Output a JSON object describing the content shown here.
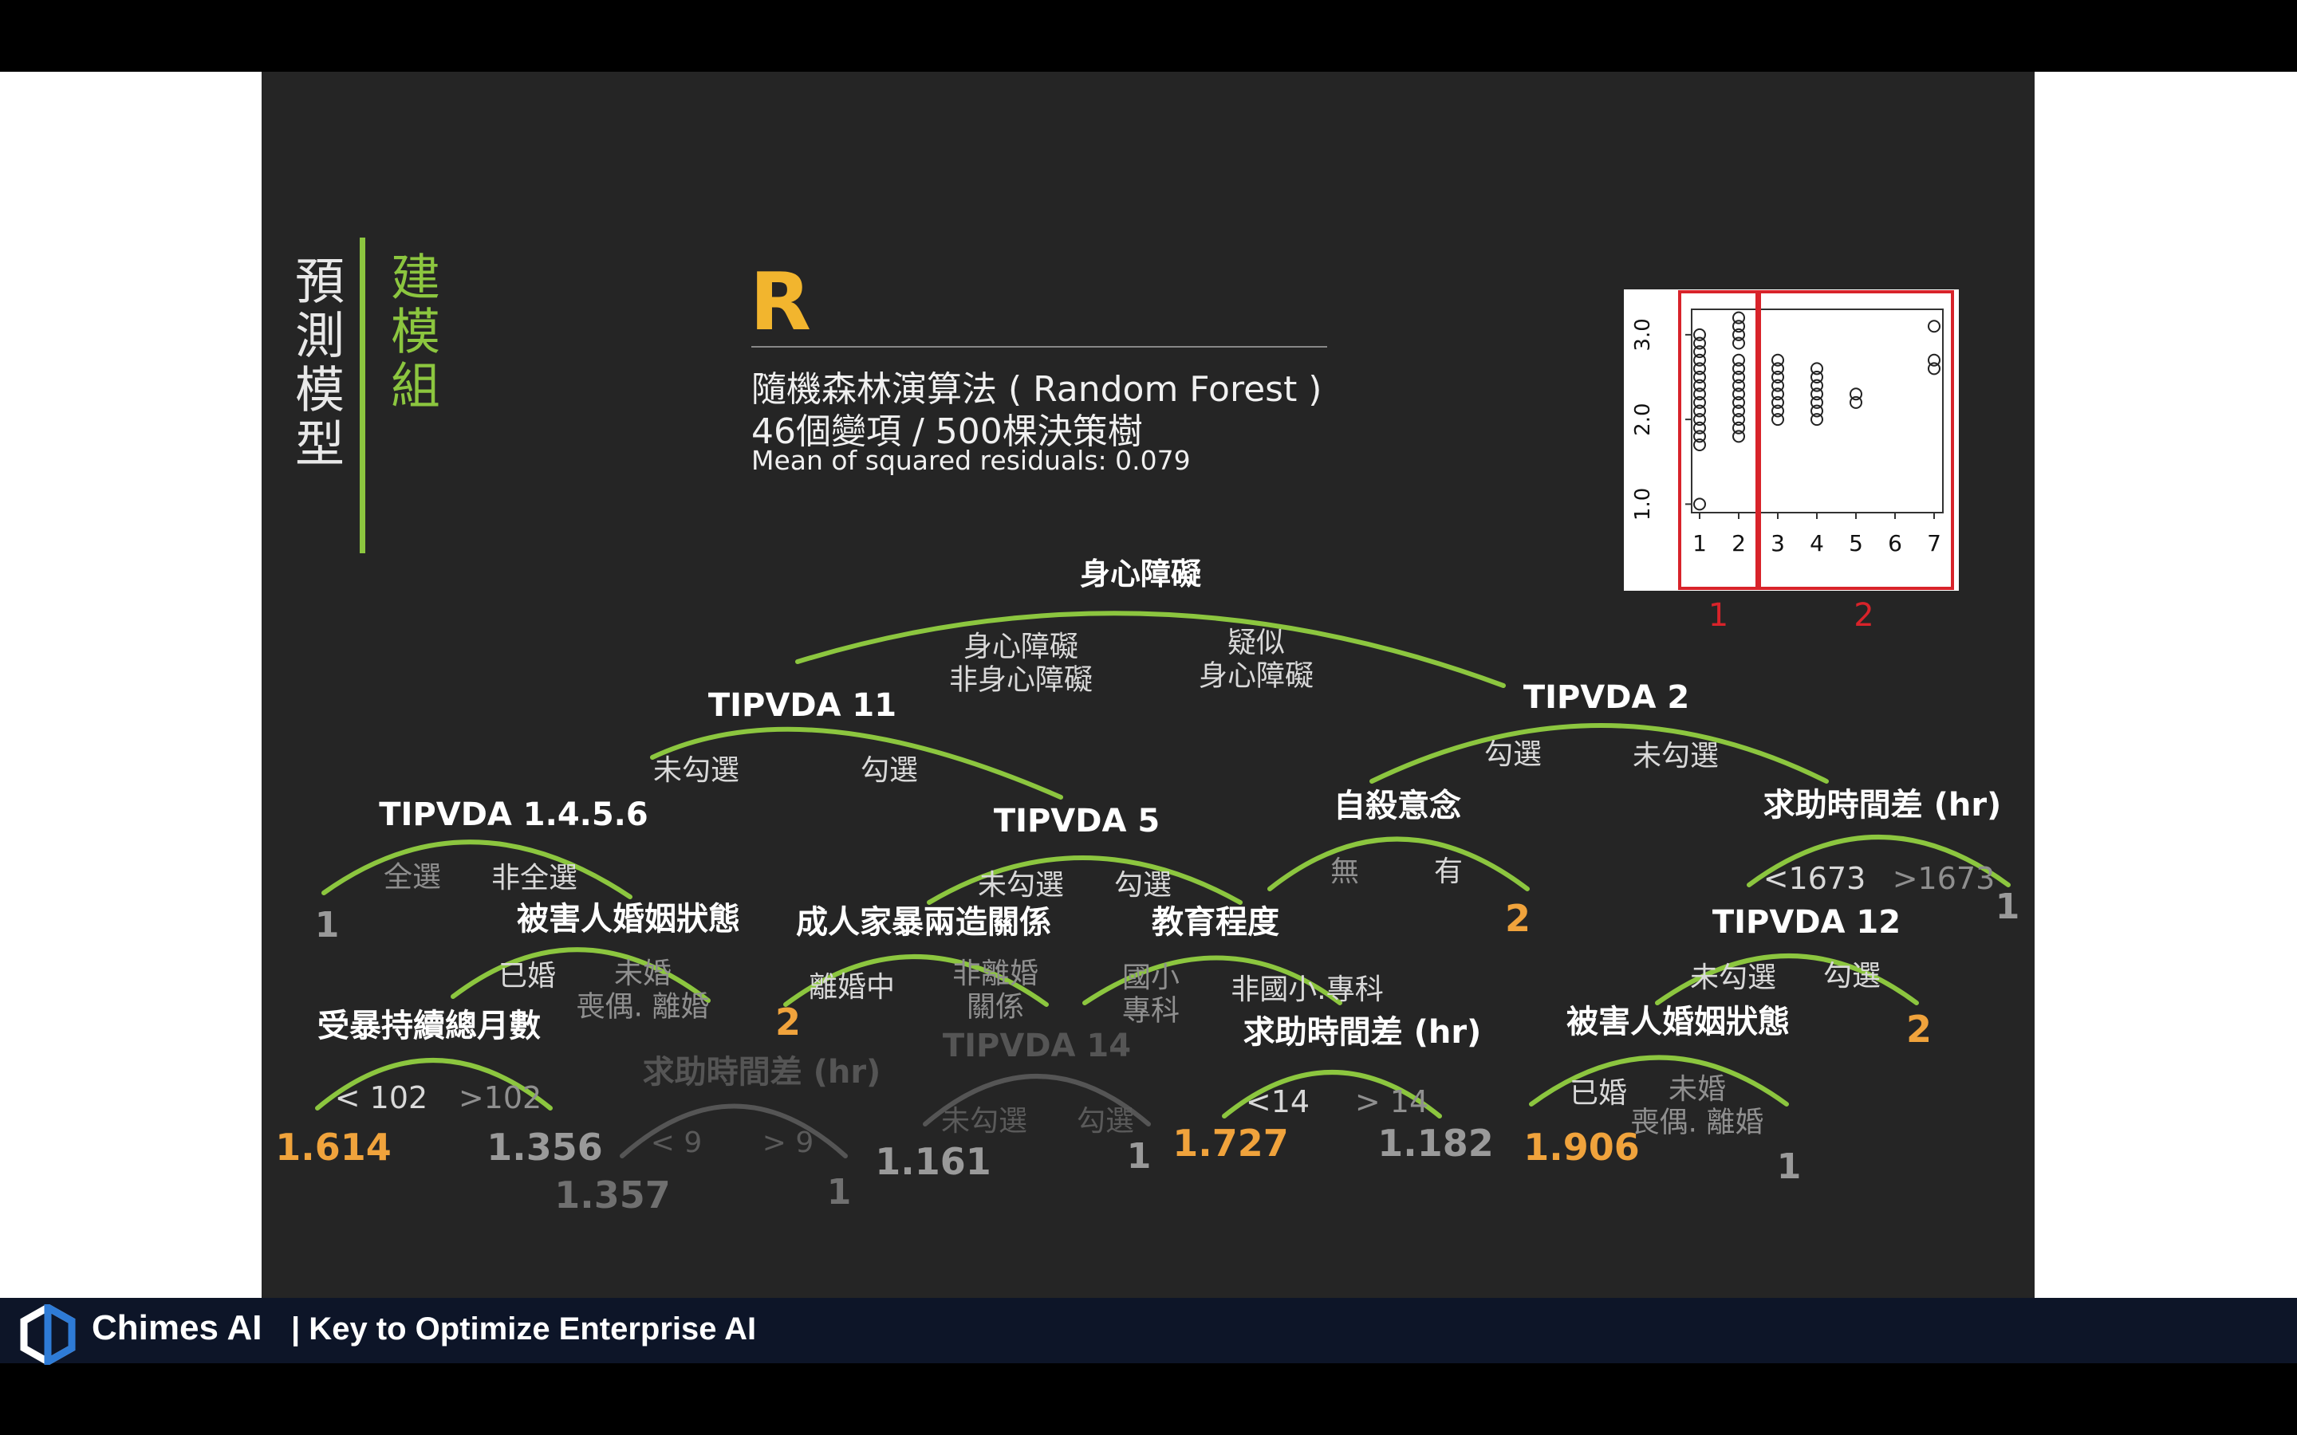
{
  "footer": {
    "brand": "Chimes AI",
    "tagline": "| Key to Optimize Enterprise AI",
    "colors": {
      "bar": "#0d1528"
    }
  },
  "sidebar": {
    "module_title": "建模組",
    "module_subtitle": "預測模型",
    "colors": {
      "accent": "#8cc63f"
    }
  },
  "header": {
    "letter": "R",
    "algorithm": "隨機森林演算法 ( Random Forest )",
    "config": "46個變項 / 500棵決策樹",
    "metric": "Mean of squared residuals: 0.079"
  },
  "inset_plot": {
    "y_ticks": [
      "1.0",
      "2.0",
      "3.0"
    ],
    "x_ticks": [
      "1",
      "2",
      "3",
      "4",
      "5",
      "6",
      "7"
    ],
    "group_labels": [
      "1",
      "2"
    ],
    "groups": [
      [
        1,
        2
      ],
      [
        3,
        4,
        5,
        6,
        7
      ]
    ],
    "y_range": [
      0.9,
      3.3
    ],
    "points": [
      {
        "x": 1,
        "y": [
          1.0,
          1.7,
          1.8,
          1.9,
          2.0,
          2.1,
          2.2,
          2.3,
          2.4,
          2.5,
          2.6,
          2.7,
          2.8,
          2.9,
          3.0
        ]
      },
      {
        "x": 2,
        "y": [
          1.8,
          1.9,
          2.0,
          2.1,
          2.2,
          2.3,
          2.4,
          2.5,
          2.6,
          2.7,
          2.9,
          3.0,
          3.1,
          3.2
        ]
      },
      {
        "x": 3,
        "y": [
          2.0,
          2.1,
          2.2,
          2.3,
          2.4,
          2.5,
          2.6,
          2.7
        ]
      },
      {
        "x": 4,
        "y": [
          2.0,
          2.1,
          2.2,
          2.3,
          2.4,
          2.5,
          2.6
        ]
      },
      {
        "x": 5,
        "y": [
          2.2,
          2.3
        ]
      },
      {
        "x": 7,
        "y": [
          2.6,
          2.7,
          3.1
        ]
      }
    ],
    "colors": {
      "group_box": "#d8232a"
    }
  },
  "tree": {
    "colors": {
      "branch": "#8cc63f",
      "faded": "#555555",
      "leaf_highlight": "#f0a33c",
      "leaf_gray": "#9a9a9a",
      "label": "#ffffff"
    },
    "node_labels": {
      "root": "身心障礙",
      "tipvda11": "TIPVDA 11",
      "tipvda2": "TIPVDA 2",
      "tipvda1456": "TIPVDA 1.4.5.6",
      "tipvda5": "TIPVDA 5",
      "suicide": "自殺意念",
      "help_time_right": "求助時間差 (hr)",
      "marital_left": "被害人婚姻狀態",
      "adult_violence": "成人家暴兩造關係",
      "education": "教育程度",
      "tipvda12": "TIPVDA 12",
      "abuse_months": "受暴持續總月數",
      "help_time_faded": "求助時間差 (hr)",
      "tipvda14": "TIPVDA 14",
      "help_time_mid": "求助時間差 (hr)",
      "marital_right": "被害人婚姻狀態"
    },
    "branch_labels": {
      "root_left": "身心障礙\n非身心障礙",
      "root_right": "疑似\n身心障礙",
      "t11_left": "未勾選",
      "t11_right": "勾選",
      "t2_left": "勾選",
      "t2_right": "未勾選",
      "t1456_left": "全選",
      "t1456_right": "非全選",
      "t5_left": "未勾選",
      "t5_right": "勾選",
      "suicide_left": "無",
      "suicide_right": "有",
      "helpr_left": "<1673",
      "helpr_right": ">1673",
      "marl_left": "已婚",
      "marl_right": "未婚\n喪偶. 離婚",
      "adv_left": "離婚中",
      "adv_right": "非離婚\n關係",
      "edu_left": "國小\n專科",
      "edu_right": "非國小.專科",
      "t12_left": "未勾選",
      "t12_right": "勾選",
      "abm_left": "< 102",
      "abm_right": ">102",
      "htf_left": "< 9",
      "htf_right": "> 9",
      "t14_left": "未勾選",
      "t14_right": "勾選",
      "htm_left": "<14",
      "htm_right": "> 14",
      "marr_left": "已婚",
      "marr_right": "未婚\n喪偶. 離婚"
    },
    "leaves": {
      "l_1a": "1",
      "l_2a": "2",
      "l_2b": "2",
      "l_1b": "1",
      "l_2c": "2",
      "l_1614": "1.614",
      "l_1356": "1.356",
      "l_1357": "1.357",
      "l_1c": "1",
      "l_1161": "1.161",
      "l_1d": "1",
      "l_1727": "1.727",
      "l_1182": "1.182",
      "l_1906": "1.906",
      "l_1e": "1"
    }
  }
}
